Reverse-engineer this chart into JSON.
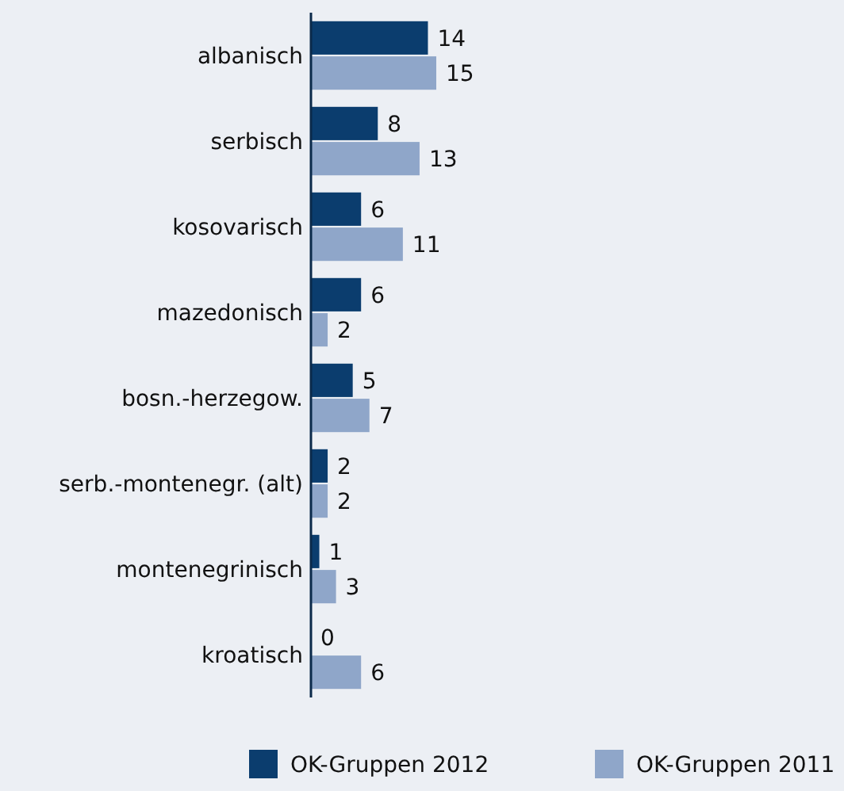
{
  "chart_data": {
    "type": "bar",
    "orientation": "horizontal",
    "categories": [
      "albanisch",
      "serbisch",
      "kosovarisch",
      "mazedonisch",
      "bosn.-herzegow.",
      "serb.-montenegr. (alt)",
      "montenegrinisch",
      "kroatisch"
    ],
    "series": [
      {
        "name": "OK-Gruppen 2012",
        "color": "#0b3d6e",
        "values": [
          14,
          8,
          6,
          6,
          5,
          2,
          1,
          0
        ]
      },
      {
        "name": "OK-Gruppen 2011",
        "color": "#8fa6c9",
        "values": [
          15,
          13,
          11,
          2,
          7,
          2,
          3,
          6
        ]
      }
    ],
    "data_labels": true,
    "legend": "bottom"
  }
}
